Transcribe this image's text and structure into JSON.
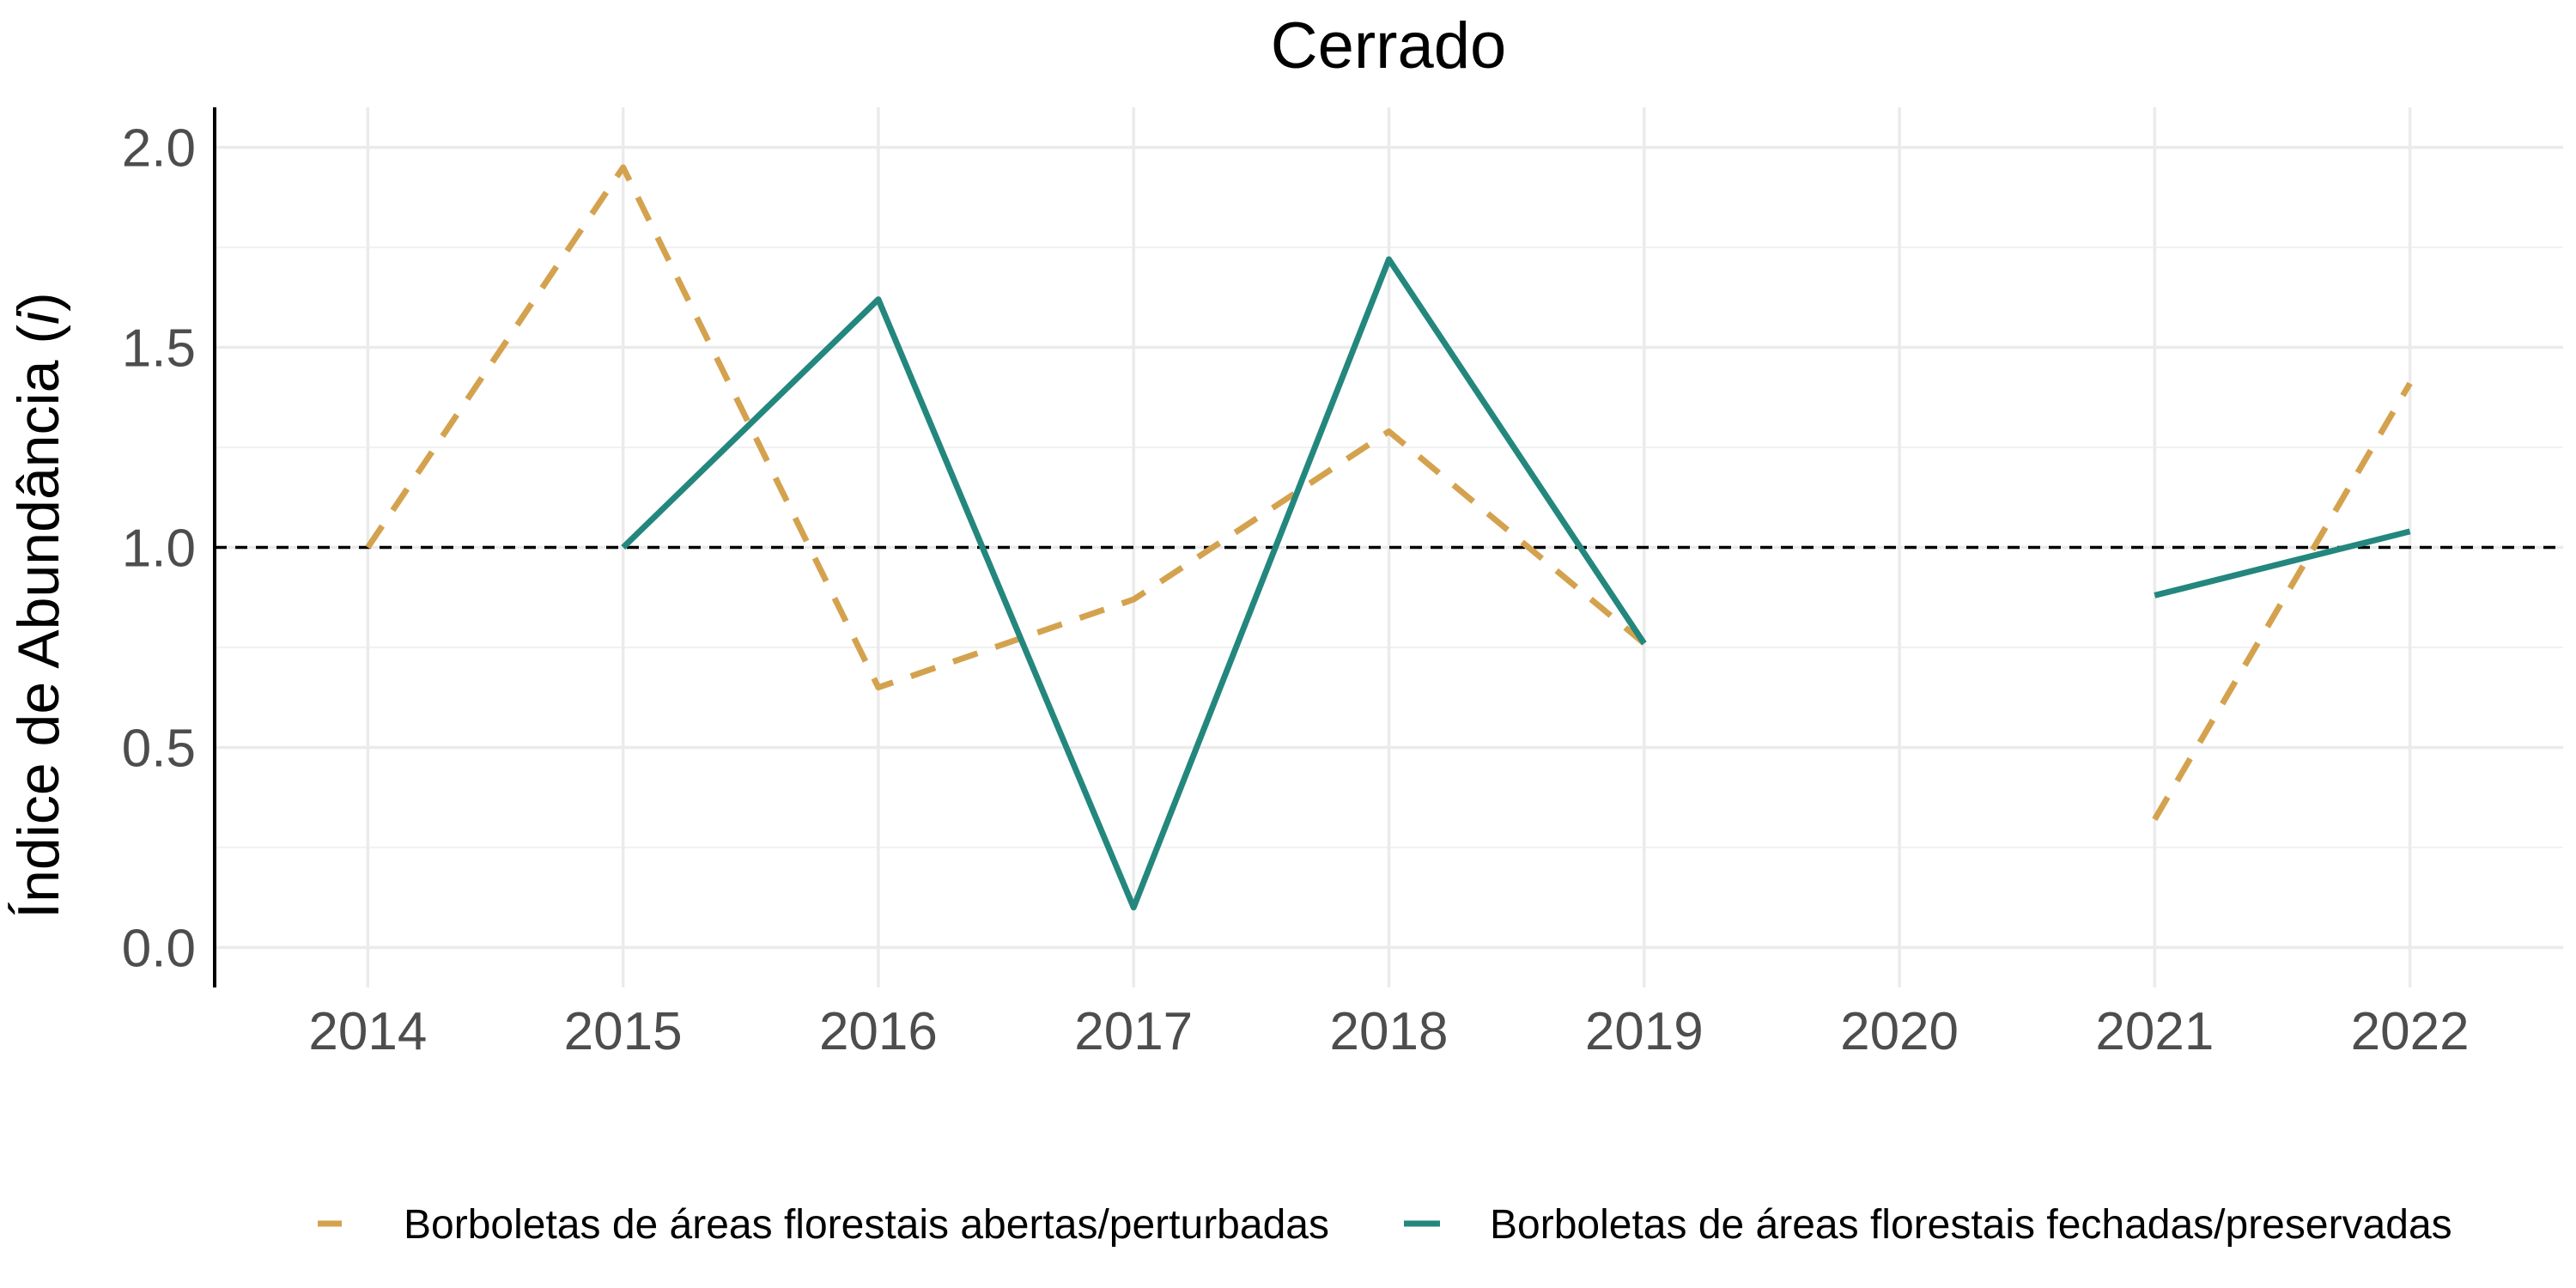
{
  "chart_data": {
    "type": "line",
    "title": "Cerrado",
    "xlabel": "",
    "ylabel_prefix": "Índice de Abundância (",
    "ylabel_italic": "i",
    "ylabel_suffix": ")",
    "x": [
      2014,
      2015,
      2016,
      2017,
      2018,
      2019,
      2020,
      2021,
      2022
    ],
    "xlim": [
      2013.4,
      2022.6
    ],
    "ylim": [
      -0.1,
      2.1
    ],
    "yticks": [
      0.0,
      0.5,
      1.0,
      1.5,
      2.0
    ],
    "ytick_labels": [
      "0.0",
      "0.5",
      "1.0",
      "1.5",
      "2.0"
    ],
    "xtick_labels": [
      "2014",
      "2015",
      "2016",
      "2017",
      "2018",
      "2019",
      "2020",
      "2021",
      "2022"
    ],
    "reference_line": 1.0,
    "grid": true,
    "legend_position": "bottom",
    "series": [
      {
        "name": "Borboletas de áreas florestais abertas/perturbadas",
        "color": "#D4A24E",
        "style": "dashed",
        "values": [
          1.0,
          1.95,
          0.65,
          0.87,
          1.29,
          0.76,
          null,
          0.32,
          1.41
        ]
      },
      {
        "name": "Borboletas de áreas florestais fechadas/preservadas",
        "color": "#23877D",
        "style": "solid",
        "values": [
          null,
          1.0,
          1.62,
          0.1,
          1.72,
          0.76,
          null,
          0.88,
          1.04
        ]
      }
    ]
  }
}
